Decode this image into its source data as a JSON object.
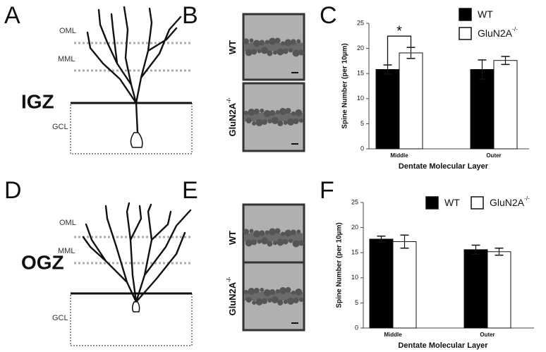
{
  "panel_a": {
    "letter": "A",
    "zone": "IGZ",
    "layers": [
      "OML",
      "MML",
      "GCL"
    ]
  },
  "panel_b": {
    "letter": "B",
    "image_labels": [
      {
        "name": "WT"
      },
      {
        "name": "GluN2A",
        "superscript": "-/-"
      }
    ]
  },
  "panel_c": {
    "letter": "C"
  },
  "panel_d": {
    "letter": "D",
    "zone": "OGZ",
    "layers": [
      "OML",
      "MML",
      "GCL"
    ]
  },
  "panel_e": {
    "letter": "E",
    "image_labels": [
      {
        "name": "WT"
      },
      {
        "name": "GluN2A",
        "superscript": "-/-"
      }
    ]
  },
  "panel_f": {
    "letter": "F"
  },
  "chart_data": [
    {
      "type": "bar",
      "categories": [
        "Middle",
        "Outer"
      ],
      "series": [
        {
          "name": "WT",
          "color": "#000000",
          "values": [
            15.8,
            15.8
          ],
          "errors": [
            0.9,
            1.9
          ]
        },
        {
          "name": "GluN2A",
          "superscript": "-/-",
          "color": "#ffffff",
          "values": [
            19.1,
            17.6
          ],
          "errors": [
            1.1,
            0.8
          ]
        }
      ],
      "ylim": [
        0,
        25
      ],
      "yticks": [
        0,
        5,
        10,
        15,
        20,
        25
      ],
      "xlabel": "Dentate Molecular Layer",
      "ylabel": "Spine Number (per 10µm)",
      "annotation": "*",
      "legend": "upper right"
    },
    {
      "type": "bar",
      "categories": [
        "Middle",
        "Outer"
      ],
      "series": [
        {
          "name": "WT",
          "color": "#000000",
          "values": [
            17.7,
            15.6
          ],
          "errors": [
            0.6,
            0.9
          ]
        },
        {
          "name": "GluN2A",
          "superscript": "-/-",
          "color": "#ffffff",
          "values": [
            17.2,
            15.2
          ],
          "errors": [
            1.3,
            0.7
          ]
        }
      ],
      "ylim": [
        0,
        25
      ],
      "yticks": [
        0,
        5,
        10,
        15,
        20,
        25
      ],
      "xlabel": "Dentate Molecular Layer",
      "ylabel": "Spine Number (per 10µm)",
      "legend": "top"
    }
  ]
}
